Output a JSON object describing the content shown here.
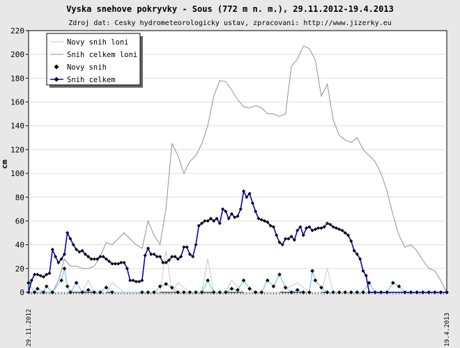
{
  "chart_data": {
    "type": "line",
    "title": "Vyska snehove pokryvky - Sous (772 m n. m.), 29.11.2012-19.4.2013",
    "subtitle": "Zdroj dat: Cesky hydrometeorologicky ustav, zpracovani: http://www.jizerky.eu",
    "ylabel": "cm",
    "xlabel": "",
    "ylim": [
      0,
      220
    ],
    "yticks": [
      0,
      20,
      40,
      60,
      80,
      100,
      120,
      140,
      160,
      180,
      200,
      220
    ],
    "x_start_label": "29.11.2012",
    "x_end_label": "19.4.2013",
    "grid": true,
    "legend_position": "top-left",
    "legend": [
      "Novy snih loni",
      "Snih celkem loni",
      "Novy snih",
      "Snih celkem"
    ],
    "series": [
      {
        "name": "Novy snih loni",
        "color": "#c8c8c8",
        "x": [
          0,
          8,
          14,
          16,
          18,
          20,
          22,
          24,
          26,
          28,
          32,
          40,
          44,
          46,
          48,
          50,
          54,
          58,
          60,
          62,
          64,
          66,
          68,
          70,
          72,
          74,
          76,
          80,
          84,
          90,
          94,
          96,
          98,
          100,
          102,
          104,
          106,
          108,
          112,
          116,
          120,
          130,
          136,
          140
        ],
        "values": [
          0,
          0,
          0,
          8,
          0,
          10,
          0,
          0,
          0,
          8,
          0,
          0,
          0,
          35,
          0,
          8,
          0,
          0,
          28,
          0,
          0,
          0,
          10,
          5,
          0,
          0,
          0,
          0,
          0,
          8,
          0,
          0,
          0,
          20,
          0,
          0,
          0,
          0,
          0,
          0,
          0,
          0,
          0,
          0
        ]
      },
      {
        "name": "Snih celkem loni",
        "color": "#909090",
        "x": [
          0,
          4,
          8,
          10,
          12,
          14,
          16,
          18,
          20,
          22,
          24,
          26,
          28,
          30,
          32,
          34,
          36,
          38,
          40,
          42,
          44,
          46,
          48,
          50,
          52,
          54,
          56,
          58,
          60,
          62,
          64,
          66,
          68,
          70,
          72,
          74,
          76,
          78,
          80,
          82,
          84,
          86,
          88,
          90,
          92,
          94,
          96,
          98,
          100,
          102,
          104,
          106,
          108,
          110,
          112,
          114,
          116,
          118,
          120,
          122,
          124,
          126,
          128,
          130,
          132,
          134,
          136,
          138,
          140
        ],
        "values": [
          0,
          0,
          0,
          10,
          28,
          22,
          22,
          20,
          20,
          22,
          30,
          42,
          40,
          45,
          50,
          45,
          40,
          37,
          60,
          48,
          40,
          70,
          125,
          115,
          100,
          110,
          115,
          125,
          140,
          165,
          178,
          177,
          170,
          162,
          156,
          155,
          157,
          155,
          150,
          150,
          148,
          150,
          190,
          196,
          207,
          205,
          195,
          165,
          175,
          145,
          132,
          128,
          126,
          130,
          120,
          115,
          110,
          100,
          85,
          65,
          48,
          38,
          40,
          35,
          27,
          20,
          18,
          10,
          0
        ]
      },
      {
        "name": "Novy snih",
        "color": "#8fd0f0",
        "x": [
          0,
          2,
          3,
          5,
          6,
          8,
          11,
          12,
          13,
          14,
          16,
          18,
          20,
          22,
          24,
          26,
          28,
          38,
          40,
          42,
          44,
          46,
          48,
          50,
          52,
          54,
          56,
          58,
          60,
          62,
          64,
          66,
          68,
          70,
          72,
          74,
          76,
          78,
          80,
          82,
          84,
          86,
          88,
          90,
          92,
          94,
          95,
          96,
          98,
          100,
          102,
          104,
          106,
          108,
          110,
          112,
          114,
          116,
          118,
          120,
          122,
          124,
          126,
          128,
          130,
          132,
          134,
          136,
          138,
          140
        ],
        "values": [
          8,
          0,
          3,
          0,
          5,
          0,
          10,
          20,
          5,
          0,
          8,
          0,
          2,
          0,
          0,
          4,
          0,
          0,
          0,
          0,
          5,
          7,
          4,
          0,
          0,
          0,
          0,
          0,
          10,
          0,
          0,
          0,
          3,
          2,
          10,
          3,
          0,
          0,
          10,
          5,
          15,
          4,
          0,
          2,
          0,
          0,
          18,
          10,
          4,
          0,
          0,
          0,
          0,
          0,
          0,
          0,
          8,
          0,
          0,
          0,
          8,
          5,
          0,
          0,
          0,
          0,
          0,
          0,
          0,
          0
        ]
      },
      {
        "name": "Snih celkem",
        "color": "#0000cc",
        "x": [
          0,
          1,
          2,
          3,
          4,
          5,
          6,
          7,
          8,
          9,
          10,
          11,
          12,
          13,
          14,
          15,
          16,
          17,
          18,
          19,
          20,
          21,
          22,
          23,
          24,
          25,
          26,
          27,
          28,
          29,
          30,
          31,
          32,
          33,
          34,
          35,
          36,
          37,
          38,
          39,
          40,
          41,
          42,
          43,
          44,
          45,
          46,
          47,
          48,
          49,
          50,
          51,
          52,
          53,
          54,
          55,
          56,
          57,
          58,
          59,
          60,
          61,
          62,
          63,
          64,
          65,
          66,
          67,
          68,
          69,
          70,
          71,
          72,
          73,
          74,
          75,
          76,
          77,
          78,
          79,
          80,
          81,
          82,
          83,
          84,
          85,
          86,
          87,
          88,
          89,
          90,
          91,
          92,
          93,
          94,
          95,
          96,
          97,
          98,
          99,
          100,
          101,
          102,
          103,
          104,
          105,
          106,
          107,
          108,
          109,
          110,
          111,
          112,
          113,
          114,
          115,
          116,
          117,
          118,
          119,
          120,
          121,
          122,
          123,
          124,
          125,
          126,
          127,
          128,
          129,
          130,
          131,
          132,
          133,
          134,
          135,
          136,
          137,
          138,
          139,
          140
        ],
        "values": [
          0,
          10,
          15,
          15,
          14,
          13,
          15,
          16,
          36,
          30,
          25,
          28,
          32,
          50,
          45,
          40,
          36,
          34,
          35,
          32,
          30,
          28,
          28,
          28,
          30,
          30,
          28,
          26,
          24,
          24,
          24,
          25,
          25,
          20,
          10,
          10,
          9,
          9,
          10,
          31,
          37,
          32,
          32,
          30,
          30,
          25,
          25,
          27,
          30,
          30,
          28,
          30,
          38,
          38,
          32,
          30,
          40,
          56,
          58,
          60,
          60,
          62,
          60,
          62,
          58,
          70,
          68,
          62,
          66,
          63,
          64,
          70,
          85,
          80,
          83,
          75,
          68,
          62,
          61,
          60,
          59,
          56,
          55,
          48,
          42,
          40,
          45,
          45,
          47,
          44,
          52,
          55,
          48,
          54,
          55,
          52,
          53,
          54,
          54,
          55,
          58,
          57,
          55,
          54,
          53,
          52,
          50,
          48,
          43,
          35,
          32,
          28,
          18,
          14,
          0,
          0,
          0,
          0,
          0,
          0,
          0,
          0,
          0,
          0,
          0,
          0,
          0,
          0,
          0,
          0,
          0,
          0,
          0,
          0,
          0,
          0,
          0,
          0,
          0,
          0,
          0
        ]
      }
    ]
  }
}
